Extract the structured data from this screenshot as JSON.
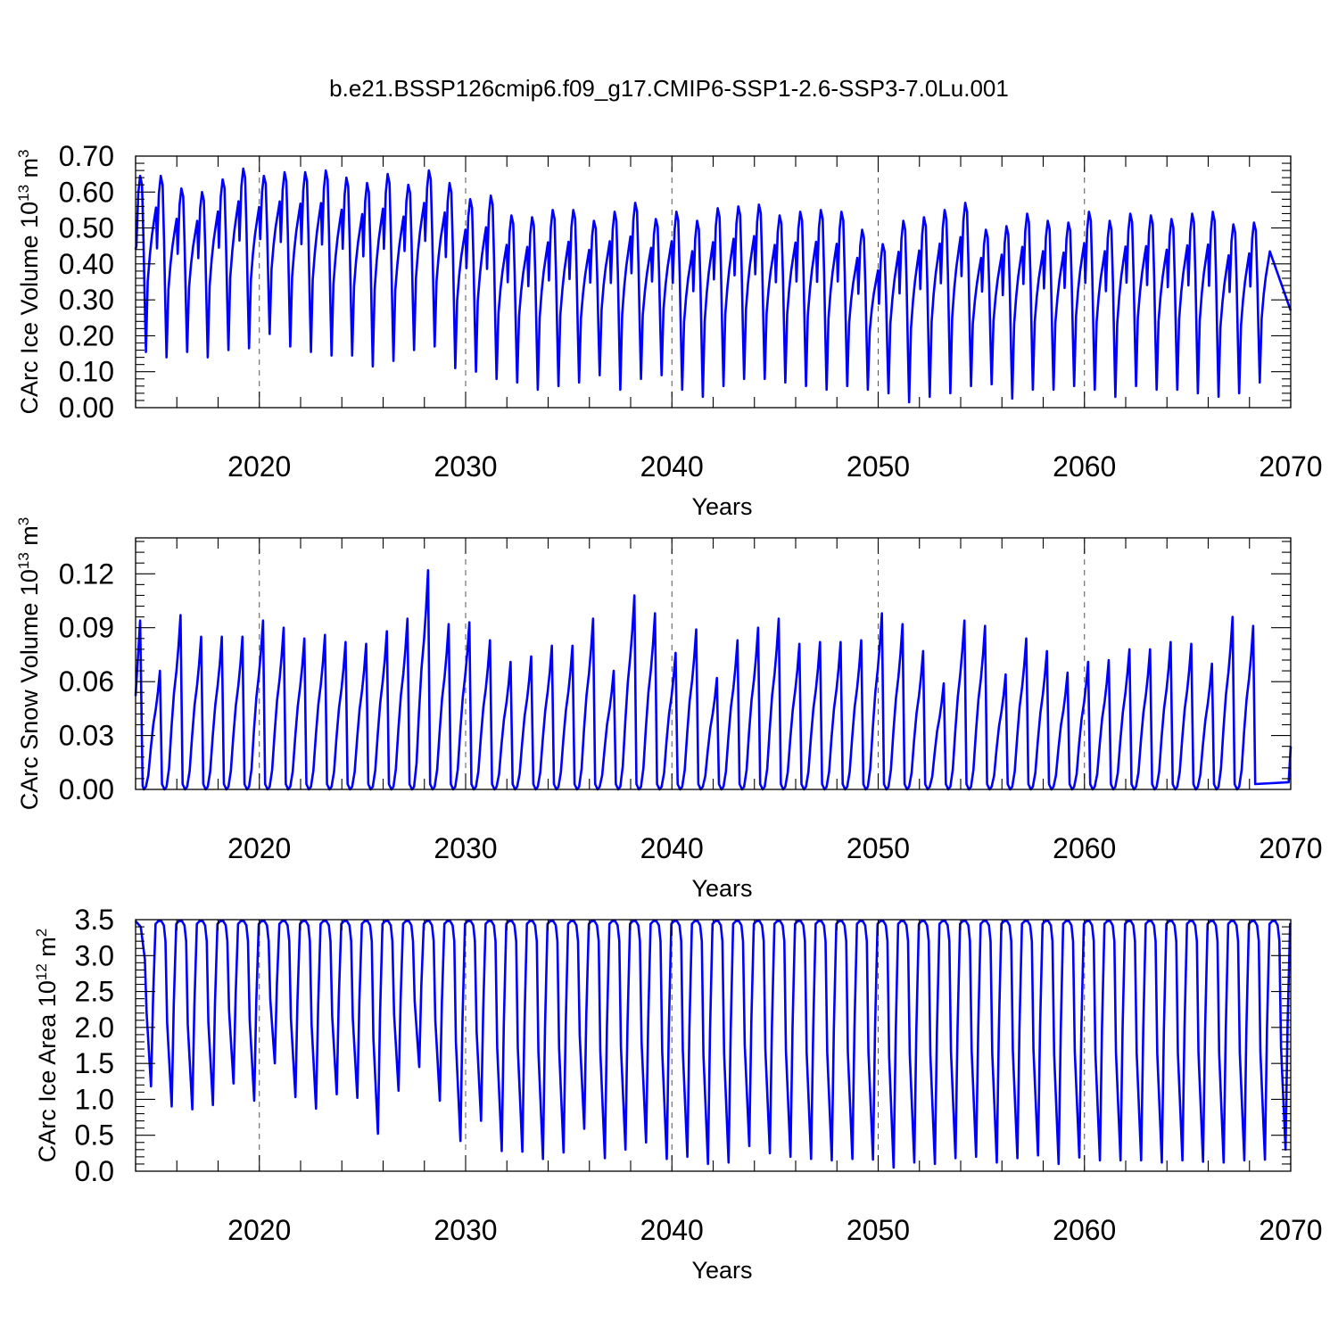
{
  "title": "b.e21.BSSP126cmip6.f09_g17.CMIP6-SSP1-2.6-SSP3-7.0Lu.001",
  "chart_data": [
    {
      "id": "ice-volume",
      "type": "line",
      "ylabel_main": "CArc Ice Volume 10",
      "ylabel_exp": "13",
      "ylabel_unit": " m",
      "ylabel_unit_exp": "3",
      "xlabel": "Years",
      "xlim": [
        2014,
        2070
      ],
      "ylim": [
        0.0,
        0.7
      ],
      "yticks": [
        0.0,
        0.1,
        0.2,
        0.3,
        0.4,
        0.5,
        0.6,
        0.7
      ],
      "ytick_labels": [
        "0.00",
        "0.10",
        "0.20",
        "0.30",
        "0.40",
        "0.50",
        "0.60",
        "0.70"
      ],
      "xticks": [
        2020,
        2030,
        2040,
        2050,
        2060,
        2070
      ],
      "xtick_labels": [
        "2020",
        "2030",
        "2040",
        "2050",
        "2060",
        "2070"
      ],
      "grid_x": [
        2020,
        2030,
        2040,
        2050,
        2060
      ],
      "series": {
        "name": "CArc Ice Volume",
        "x_start": 2014.04,
        "x_step": 1.0,
        "start_value": 0.44,
        "annual_max": [
          0.645,
          0.645,
          0.61,
          0.6,
          0.635,
          0.665,
          0.645,
          0.655,
          0.655,
          0.66,
          0.64,
          0.625,
          0.65,
          0.62,
          0.66,
          0.625,
          0.58,
          0.59,
          0.535,
          0.53,
          0.55,
          0.55,
          0.52,
          0.545,
          0.57,
          0.525,
          0.545,
          0.52,
          0.555,
          0.56,
          0.565,
          0.535,
          0.545,
          0.55,
          0.545,
          0.495,
          0.455,
          0.52,
          0.53,
          0.55,
          0.57,
          0.495,
          0.505,
          0.54,
          0.52,
          0.515,
          0.545,
          0.52,
          0.54,
          0.535,
          0.525,
          0.54,
          0.545,
          0.51,
          0.515
        ],
        "annual_min": [
          0.155,
          0.14,
          0.155,
          0.14,
          0.16,
          0.165,
          0.205,
          0.17,
          0.155,
          0.145,
          0.145,
          0.115,
          0.13,
          0.16,
          0.17,
          0.11,
          0.1,
          0.08,
          0.07,
          0.05,
          0.06,
          0.07,
          0.09,
          0.05,
          0.08,
          0.09,
          0.05,
          0.03,
          0.06,
          0.08,
          0.08,
          0.07,
          0.06,
          0.05,
          0.06,
          0.05,
          0.04,
          0.015,
          0.03,
          0.04,
          0.06,
          0.065,
          0.025,
          0.05,
          0.05,
          0.06,
          0.05,
          0.03,
          0.06,
          0.05,
          0.05,
          0.04,
          0.03,
          0.04,
          0.07
        ],
        "end_value": 0.27
      }
    },
    {
      "id": "snow-volume",
      "type": "line",
      "ylabel_main": "CArc Snow Volume 10",
      "ylabel_exp": "13",
      "ylabel_unit": " m",
      "ylabel_unit_exp": "3",
      "xlabel": "Years",
      "xlim": [
        2014,
        2070
      ],
      "ylim": [
        0.0,
        0.14
      ],
      "yticks": [
        0.0,
        0.03,
        0.06,
        0.09,
        0.12
      ],
      "ytick_labels": [
        "0.00",
        "0.03",
        "0.06",
        "0.09",
        "0.12"
      ],
      "xticks": [
        2020,
        2030,
        2040,
        2050,
        2060,
        2070
      ],
      "xtick_labels": [
        "2020",
        "2030",
        "2040",
        "2050",
        "2060",
        "2070"
      ],
      "grid_x": [
        2020,
        2030,
        2040,
        2050,
        2060
      ],
      "series": {
        "name": "CArc Snow Volume",
        "x_start": 2014.4,
        "x_step": 1.0,
        "start_value": 0.052,
        "first_peak": 0.094,
        "annual_max": [
          0.066,
          0.097,
          0.085,
          0.085,
          0.085,
          0.094,
          0.09,
          0.084,
          0.086,
          0.082,
          0.081,
          0.088,
          0.095,
          0.122,
          0.092,
          0.093,
          0.083,
          0.071,
          0.074,
          0.08,
          0.08,
          0.095,
          0.066,
          0.108,
          0.098,
          0.076,
          0.089,
          0.062,
          0.083,
          0.09,
          0.095,
          0.081,
          0.082,
          0.082,
          0.083,
          0.098,
          0.092,
          0.077,
          0.059,
          0.094,
          0.091,
          0.064,
          0.084,
          0.077,
          0.065,
          0.071,
          0.072,
          0.078,
          0.078,
          0.082,
          0.081,
          0.07,
          0.096,
          0.091
        ],
        "annual_min": 0.0,
        "end_value": 0.024
      }
    },
    {
      "id": "ice-area",
      "type": "line",
      "ylabel_main": "CArc Ice Area 10",
      "ylabel_exp": "12",
      "ylabel_unit": " m",
      "ylabel_unit_exp": "2",
      "xlabel": "Years",
      "xlim": [
        2014,
        2070
      ],
      "ylim": [
        0.0,
        3.5
      ],
      "yticks": [
        0.0,
        0.5,
        1.0,
        1.5,
        2.0,
        2.5,
        3.0,
        3.5
      ],
      "ytick_labels": [
        "0.0",
        "0.5",
        "1.0",
        "1.5",
        "2.0",
        "2.5",
        "3.0",
        "3.5"
      ],
      "xticks": [
        2020,
        2030,
        2040,
        2050,
        2060,
        2070
      ],
      "xtick_labels": [
        "2020",
        "2030",
        "2040",
        "2050",
        "2060",
        "2070"
      ],
      "grid_x": [
        2020,
        2030,
        2040,
        2050,
        2060
      ],
      "series": {
        "name": "CArc Ice Area",
        "x_start": 2014.75,
        "x_step": 1.0,
        "plateau": 3.48,
        "annual_min": [
          1.18,
          0.9,
          0.86,
          0.92,
          1.22,
          0.98,
          1.5,
          1.03,
          0.87,
          1.07,
          1.02,
          0.52,
          1.12,
          1.45,
          0.98,
          0.42,
          0.7,
          0.28,
          0.27,
          0.17,
          0.26,
          0.59,
          0.18,
          0.3,
          0.4,
          0.17,
          0.2,
          0.1,
          0.12,
          0.35,
          0.25,
          0.2,
          0.17,
          0.15,
          0.17,
          0.16,
          0.05,
          0.12,
          0.1,
          0.18,
          0.2,
          0.12,
          0.18,
          0.22,
          0.1,
          0.19,
          0.15,
          0.15,
          0.15,
          0.12,
          0.15,
          0.13,
          0.12,
          0.15,
          0.16,
          0.3
        ],
        "end_value": 3.43
      }
    }
  ]
}
